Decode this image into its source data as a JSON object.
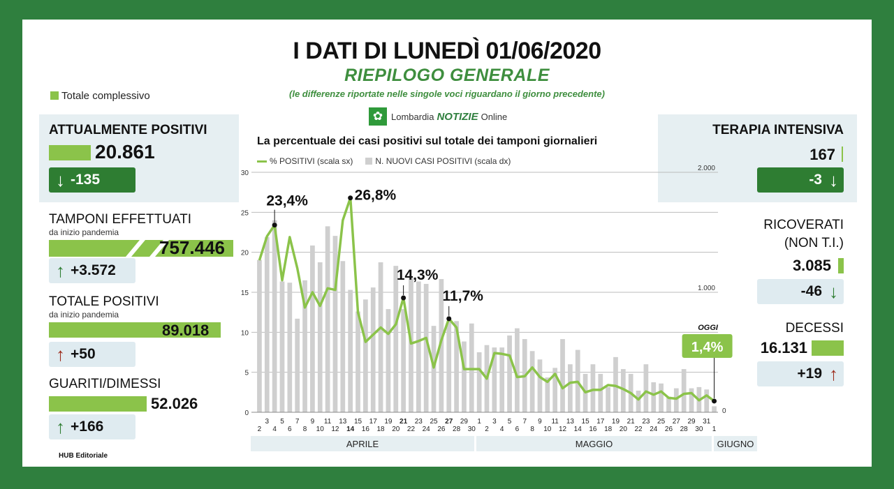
{
  "header": {
    "title": "I DATI DI LUNEDÌ 01/06/2020",
    "subtitle": "RIEPILOGO GENERALE",
    "note": "(le differenze riportate nelle singole voci riguardano il giorno precedente)",
    "legend_total": "Totale complessivo",
    "brand_prefix": "Lombardia",
    "brand_main": "NOTIZIE",
    "brand_suffix": "Online",
    "brand_icon": "flower-logo-icon"
  },
  "left": {
    "attualmente_positivi": {
      "label": "ATTUALMENTE POSITIVI",
      "value": "20.861",
      "delta": "-135",
      "direction": "down"
    },
    "tamponi": {
      "label": "TAMPONI EFFETTUATI",
      "sublabel": "da inizio pandemia",
      "value": "757.446",
      "delta": "+3.572",
      "direction": "up"
    },
    "totale_positivi": {
      "label": "TOTALE POSITIVI",
      "sublabel": "da inizio pandemia",
      "value": "89.018",
      "delta": "+50",
      "direction": "up"
    },
    "guariti": {
      "label": "GUARITI/DIMESSI",
      "value": "52.026",
      "delta": "+166",
      "direction": "up"
    }
  },
  "right": {
    "terapia": {
      "label": "TERAPIA INTENSIVA",
      "value": "167",
      "delta": "-3",
      "direction": "down"
    },
    "ricoverati": {
      "label1": "RICOVERATI",
      "label2": "(NON T.I.)",
      "value": "3.085",
      "delta": "-46",
      "direction": "down"
    },
    "decessi": {
      "label": "DECESSI",
      "value": "16.131",
      "delta": "+19",
      "direction": "up"
    }
  },
  "colors": {
    "accent_green": "#8bc34a",
    "dark_green": "#2e7d32",
    "up_red": "#9c2a1a",
    "bar_grey": "#cfcfcf",
    "background": "#2f7f3e"
  },
  "footer": {
    "credit": "HUB Editoriale"
  },
  "chart_data": {
    "type": "bar+line",
    "title": "La percentuale dei casi positivi sul totale dei tamponi giornalieri",
    "legend": [
      "% POSITIVI (scala sx)",
      "N. NUOVI CASI POSITIVI (scala dx)"
    ],
    "y_left_ticks": [
      "0",
      "5",
      "10",
      "15",
      "20",
      "25",
      "30"
    ],
    "y_left_lim": [
      0,
      30
    ],
    "y_right_ticks": [
      "0",
      "1.000",
      "2.000"
    ],
    "y_right_lim": [
      0,
      2000
    ],
    "x_labels": [
      "2",
      "3",
      "4",
      "5",
      "6",
      "7",
      "8",
      "9",
      "10",
      "11",
      "12",
      "13",
      "14",
      "15",
      "16",
      "17",
      "18",
      "19",
      "20",
      "21",
      "22",
      "23",
      "24",
      "25",
      "26",
      "27",
      "28",
      "29",
      "30",
      "1",
      "2",
      "3",
      "4",
      "5",
      "6",
      "7",
      "8",
      "9",
      "10",
      "11",
      "12",
      "13",
      "14",
      "15",
      "16",
      "17",
      "18",
      "19",
      "20",
      "21",
      "22",
      "23",
      "24",
      "25",
      "26",
      "27",
      "28",
      "29",
      "30",
      "31",
      "1"
    ],
    "bold_labels": [
      "14",
      "21",
      "27"
    ],
    "months": [
      "APRILE",
      "MAGGIO",
      "GIUGNO"
    ],
    "month_lengths": [
      29,
      31,
      1
    ],
    "pct_positivi": [
      19.0,
      22.0,
      23.4,
      16.5,
      21.9,
      18.0,
      13.1,
      15.0,
      13.3,
      15.5,
      15.3,
      24.0,
      26.8,
      12.5,
      8.8,
      9.7,
      10.6,
      9.8,
      11.0,
      14.3,
      8.6,
      8.9,
      9.3,
      5.6,
      9.0,
      11.7,
      10.6,
      5.4,
      5.4,
      5.4,
      4.2,
      7.4,
      7.3,
      7.1,
      4.4,
      4.5,
      5.6,
      4.4,
      3.8,
      4.8,
      3.0,
      3.7,
      3.8,
      2.5,
      2.8,
      2.8,
      3.4,
      3.3,
      2.9,
      2.4,
      1.6,
      2.6,
      2.2,
      2.6,
      1.8,
      1.7,
      2.3,
      2.4,
      1.5,
      2.1,
      1.4
    ],
    "nuovi_casi": [
      1270,
      1460,
      1600,
      1090,
      1080,
      780,
      1100,
      1390,
      1250,
      1550,
      1470,
      1260,
      1020,
      840,
      940,
      1040,
      1250,
      860,
      1220,
      860,
      1120,
      1090,
      1070,
      720,
      1110,
      760,
      760,
      590,
      740,
      500,
      560,
      540,
      540,
      640,
      700,
      610,
      510,
      440,
      290,
      370,
      610,
      400,
      520,
      320,
      400,
      320,
      210,
      460,
      360,
      320,
      180,
      400,
      250,
      240,
      130,
      200,
      360,
      200,
      210,
      190,
      50
    ],
    "bar_label_display": {
      "bar_max_right": 1600
    },
    "annotations": [
      {
        "day_index": 2,
        "label": "23,4%"
      },
      {
        "day_index": 12,
        "label": "26,8%"
      },
      {
        "day_index": 19,
        "label": "14,3%"
      },
      {
        "day_index": 25,
        "label": "11,7%"
      },
      {
        "day_index": 60,
        "label": "1,4%",
        "tag": "OGGI"
      }
    ]
  }
}
